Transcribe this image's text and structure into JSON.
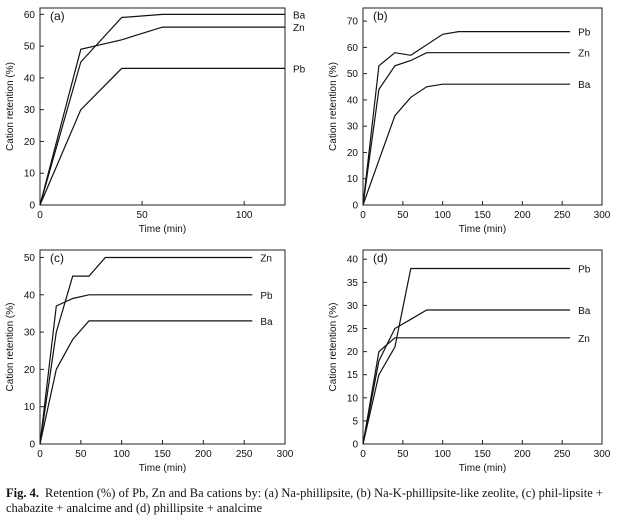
{
  "caption": {
    "label": "Fig. 4.",
    "text": "Retention (%) of Pb, Zn and Ba cations by: (a) Na-phillipsite, (b) Na-K-phillipsite-like zeolite, (c) phil-lipsite + chabazite + analcime and (d) phillipsite + analcime"
  },
  "chart_data": [
    {
      "type": "line",
      "panel": "(a)",
      "xlabel": "Time (min)",
      "ylabel": "Cation retention (%)",
      "xlim": [
        0,
        120
      ],
      "ylim": [
        0,
        62
      ],
      "xticks": [
        0,
        50,
        100
      ],
      "yticks": [
        0,
        10,
        20,
        30,
        40,
        50,
        60
      ],
      "series": [
        {
          "name": "Ba",
          "x": [
            0,
            20,
            40,
            60,
            120
          ],
          "y": [
            0,
            45,
            59,
            60,
            60
          ]
        },
        {
          "name": "Zn",
          "x": [
            0,
            20,
            40,
            60,
            120
          ],
          "y": [
            0,
            49,
            52,
            56,
            56
          ]
        },
        {
          "name": "Pb",
          "x": [
            0,
            20,
            40,
            60,
            120
          ],
          "y": [
            0,
            30,
            43,
            43,
            43
          ]
        }
      ]
    },
    {
      "type": "line",
      "panel": "(b)",
      "xlabel": "Time (min)",
      "ylabel": "Cation retention (%)",
      "xlim": [
        0,
        300
      ],
      "ylim": [
        0,
        75
      ],
      "xticks": [
        0,
        50,
        100,
        150,
        200,
        250,
        300
      ],
      "yticks": [
        0,
        10,
        20,
        30,
        40,
        50,
        60,
        70
      ],
      "series": [
        {
          "name": "Pb",
          "x": [
            0,
            20,
            40,
            60,
            100,
            120,
            260
          ],
          "y": [
            0,
            53,
            58,
            57,
            65,
            66,
            66
          ]
        },
        {
          "name": "Zn",
          "x": [
            0,
            20,
            40,
            60,
            80,
            260
          ],
          "y": [
            0,
            44,
            53,
            55,
            58,
            58
          ]
        },
        {
          "name": "Ba",
          "x": [
            0,
            20,
            40,
            60,
            80,
            100,
            260
          ],
          "y": [
            0,
            17,
            34,
            41,
            45,
            46,
            46
          ]
        }
      ]
    },
    {
      "type": "line",
      "panel": "(c)",
      "xlabel": "Time (min)",
      "ylabel": "Cation retention (%)",
      "xlim": [
        0,
        300
      ],
      "ylim": [
        0,
        52
      ],
      "xticks": [
        0,
        50,
        100,
        150,
        200,
        250,
        300
      ],
      "yticks": [
        0,
        10,
        20,
        30,
        40,
        50
      ],
      "series": [
        {
          "name": "Zn",
          "x": [
            0,
            20,
            40,
            60,
            80,
            260
          ],
          "y": [
            0,
            30,
            45,
            45,
            50,
            50
          ]
        },
        {
          "name": "Pb",
          "x": [
            0,
            20,
            40,
            60,
            260
          ],
          "y": [
            0,
            37,
            39,
            40,
            40
          ]
        },
        {
          "name": "Ba",
          "x": [
            0,
            20,
            40,
            60,
            260
          ],
          "y": [
            0,
            20,
            28,
            33,
            33
          ]
        }
      ]
    },
    {
      "type": "line",
      "panel": "(d)",
      "xlabel": "Time (min)",
      "ylabel": "Cation retention (%)",
      "xlim": [
        0,
        300
      ],
      "ylim": [
        0,
        42
      ],
      "xticks": [
        0,
        50,
        100,
        150,
        200,
        250,
        300
      ],
      "yticks": [
        0,
        5,
        10,
        15,
        20,
        25,
        30,
        35,
        40
      ],
      "series": [
        {
          "name": "Pb",
          "x": [
            0,
            20,
            40,
            60,
            260
          ],
          "y": [
            0,
            15,
            21,
            38,
            38
          ]
        },
        {
          "name": "Ba",
          "x": [
            0,
            20,
            40,
            60,
            80,
            260
          ],
          "y": [
            0,
            18,
            25,
            27,
            29,
            29
          ]
        },
        {
          "name": "Zn",
          "x": [
            0,
            20,
            40,
            60,
            260
          ],
          "y": [
            0,
            20,
            23,
            23,
            23
          ]
        }
      ]
    }
  ]
}
